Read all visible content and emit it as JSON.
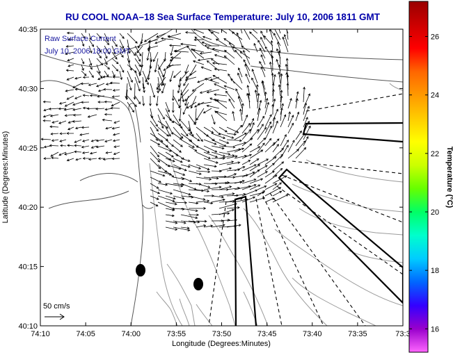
{
  "title": "RU COOL  NOAA–18  Sea Surface Temperature:  July 10, 2006 1811 GMT",
  "overlay": {
    "line1": "Raw Surface Current",
    "line2": "July 10, 2006 18:00 GMT"
  },
  "x_axis": {
    "label": "Longitude (Degrees:Minutes)",
    "ticks": [
      "74:10",
      "74:05",
      "74:00",
      "73:55",
      "73:50",
      "73:45",
      "73:40",
      "73:35",
      "73:3"
    ]
  },
  "y_axis": {
    "label": "Latitude (Degrees:Minutes)",
    "ticks": [
      "40:35",
      "40:30",
      "40:25",
      "40:20",
      "40:15",
      "40:10"
    ]
  },
  "colorbar": {
    "label": "Temperature (°C)",
    "ticks": [
      "26",
      "24",
      "22",
      "20",
      "18",
      "16"
    ],
    "min": 15.2,
    "max": 27.2,
    "stops": [
      "#ff66ff",
      "#9900cc",
      "#3300ff",
      "#0066ff",
      "#00ccff",
      "#00ffcc",
      "#00ff66",
      "#66ff00",
      "#ccff00",
      "#ffff00",
      "#ffcc00",
      "#ff9900",
      "#ff6600",
      "#ff0000",
      "#cc0000",
      "#990000"
    ]
  },
  "scale_legend": {
    "label": "50 cm/s"
  },
  "colors": {
    "title": "#0000aa",
    "overlay": "#1a1aa0",
    "coast": "#555555",
    "contour": "#9a9a9a"
  }
}
